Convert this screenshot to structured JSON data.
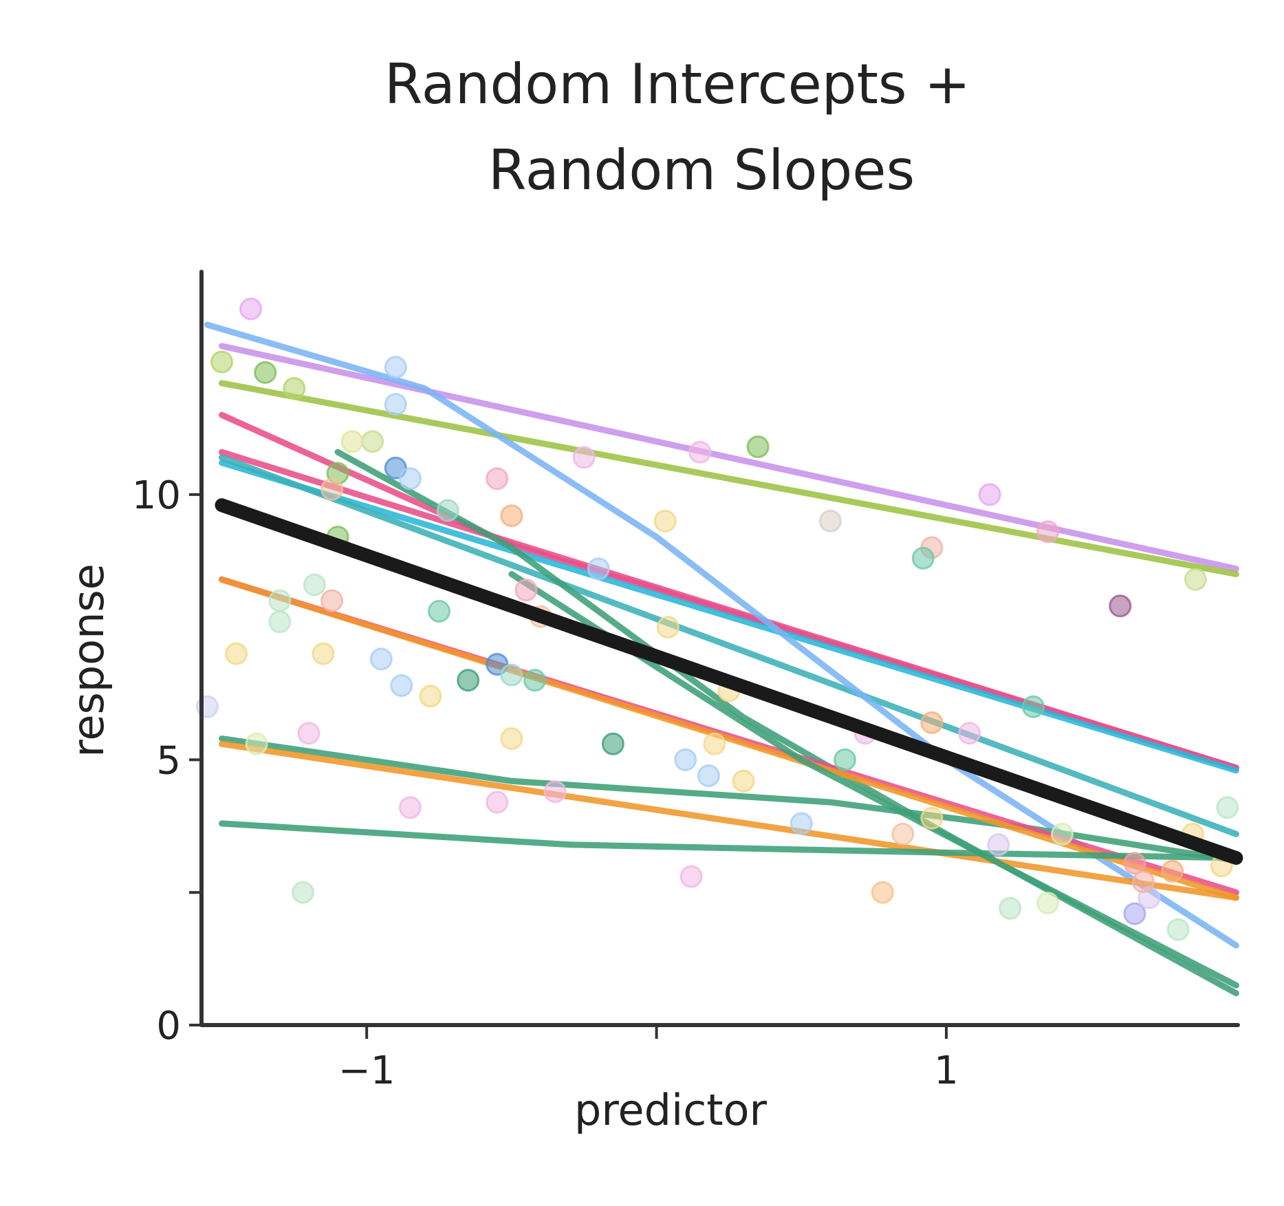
{
  "chart_data": {
    "type": "line",
    "title": "Random Intercepts + Random Slopes",
    "title_lines": [
      "Random Intercepts +",
      "Random Slopes"
    ],
    "xlabel": "predictor",
    "ylabel": "response",
    "xlim": [
      -1.57,
      2.03
    ],
    "ylim": [
      0,
      14.2
    ],
    "x_ticks": [
      {
        "value": -1,
        "label": "−1"
      },
      {
        "value": 0,
        "label": ""
      },
      {
        "value": 1,
        "label": "1"
      }
    ],
    "y_ticks": [
      {
        "value": 0,
        "label": "0"
      },
      {
        "value": 2.5,
        "label": ""
      },
      {
        "value": 5,
        "label": "5"
      },
      {
        "value": 10,
        "label": "10"
      }
    ],
    "grid": false,
    "legend": "none",
    "fixed_effect": {
      "name": "",
      "color": "#1a1a1a",
      "x": [
        -1.5,
        2.0
      ],
      "y": [
        9.8,
        3.15
      ]
    },
    "series": [
      {
        "color": "#c792ea",
        "x": [
          -1.5,
          2.0
        ],
        "y": [
          12.8,
          8.6
        ]
      },
      {
        "color": "#9dc243",
        "x": [
          -1.5,
          2.0
        ],
        "y": [
          12.1,
          8.5
        ]
      },
      {
        "color": "#e84f8a",
        "x": [
          -1.5,
          -0.5,
          2.0
        ],
        "y": [
          11.5,
          9.05,
          4.85
        ]
      },
      {
        "color": "#e84f8a",
        "x": [
          -1.5,
          2.0
        ],
        "y": [
          10.8,
          4.85
        ]
      },
      {
        "color": "#2bb6d6",
        "x": [
          -1.5,
          2.0
        ],
        "y": [
          10.6,
          4.8
        ]
      },
      {
        "color": "#3bb0b8",
        "x": [
          -1.5,
          2.0
        ],
        "y": [
          10.7,
          3.6
        ]
      },
      {
        "color": "#7ab4f5",
        "x": [
          -1.55,
          -0.8,
          0.0,
          1.0,
          2.0
        ],
        "y": [
          13.2,
          12.0,
          9.2,
          5.0,
          1.5
        ]
      },
      {
        "color": "#3d9f78",
        "x": [
          -1.1,
          -0.5,
          0.3,
          1.0,
          2.0
        ],
        "y": [
          10.8,
          9.0,
          5.8,
          3.6,
          0.6
        ]
      },
      {
        "color": "#3d9f78",
        "x": [
          -1.5,
          -0.5,
          0.6,
          1.3,
          2.0
        ],
        "y": [
          5.4,
          4.6,
          4.2,
          3.7,
          3.1
        ]
      },
      {
        "color": "#e84f8a",
        "x": [
          -1.5,
          2.0
        ],
        "y": [
          8.4,
          2.5
        ]
      },
      {
        "color": "#f0962a",
        "x": [
          -1.5,
          2.0
        ],
        "y": [
          8.4,
          2.4
        ]
      },
      {
        "color": "#f0962a",
        "x": [
          -1.5,
          2.0
        ],
        "y": [
          5.3,
          2.4
        ]
      },
      {
        "color": "#3d9f78",
        "x": [
          -1.5,
          -0.3,
          1.0,
          2.0
        ],
        "y": [
          3.8,
          3.4,
          3.25,
          3.15
        ]
      },
      {
        "color": "#3d9f78",
        "x": [
          -0.5,
          0.5,
          1.2,
          2.0
        ],
        "y": [
          8.5,
          5.0,
          3.0,
          0.75
        ]
      }
    ],
    "points": [
      {
        "x": -1.4,
        "y": 13.5,
        "color": "#e6a8f0"
      },
      {
        "x": -0.9,
        "y": 12.4,
        "color": "#a9cdf5"
      },
      {
        "x": -1.5,
        "y": 12.5,
        "color": "#b5d36a"
      },
      {
        "x": -1.35,
        "y": 12.3,
        "color": "#7fbf5a"
      },
      {
        "x": -1.25,
        "y": 12.0,
        "color": "#b5d36a"
      },
      {
        "x": -0.9,
        "y": 11.7,
        "color": "#a9cdf5"
      },
      {
        "x": -0.98,
        "y": 11.0,
        "color": "#c8dd90"
      },
      {
        "x": -1.05,
        "y": 11.0,
        "color": "#e0e59a"
      },
      {
        "x": -0.9,
        "y": 10.5,
        "color": "#4f8fd6"
      },
      {
        "x": -0.85,
        "y": 10.3,
        "color": "#a9cdf5"
      },
      {
        "x": -1.1,
        "y": 10.4,
        "color": "#7fbf5a"
      },
      {
        "x": -1.12,
        "y": 10.1,
        "color": "#f3c2a0"
      },
      {
        "x": -0.55,
        "y": 10.3,
        "color": "#f6a8bf"
      },
      {
        "x": -0.72,
        "y": 9.7,
        "color": "#9fd8c8"
      },
      {
        "x": -0.5,
        "y": 9.6,
        "color": "#f7b07a"
      },
      {
        "x": -0.25,
        "y": 10.7,
        "color": "#f0b8e4"
      },
      {
        "x": 0.15,
        "y": 10.8,
        "color": "#f0b8e4"
      },
      {
        "x": 0.35,
        "y": 10.9,
        "color": "#7fbf5a"
      },
      {
        "x": 0.03,
        "y": 9.5,
        "color": "#f4d88a"
      },
      {
        "x": -0.2,
        "y": 8.6,
        "color": "#a9cdf5"
      },
      {
        "x": 0.6,
        "y": 9.5,
        "color": "#d8d0c8"
      },
      {
        "x": 0.95,
        "y": 9.0,
        "color": "#f3b2a8"
      },
      {
        "x": 0.92,
        "y": 8.8,
        "color": "#6ec9a8"
      },
      {
        "x": 1.15,
        "y": 10.0,
        "color": "#e6a8f0"
      },
      {
        "x": 1.35,
        "y": 9.3,
        "color": "#f0a8c8"
      },
      {
        "x": 1.6,
        "y": 7.9,
        "color": "#9b5a8c"
      },
      {
        "x": 1.86,
        "y": 8.4,
        "color": "#c8dd90"
      },
      {
        "x": -1.1,
        "y": 9.2,
        "color": "#7fbf5a"
      },
      {
        "x": -1.18,
        "y": 8.3,
        "color": "#bce6c8"
      },
      {
        "x": -1.12,
        "y": 8.0,
        "color": "#f3b2a8"
      },
      {
        "x": -1.3,
        "y": 8.0,
        "color": "#bce6c8"
      },
      {
        "x": -0.75,
        "y": 7.8,
        "color": "#6ec9a8"
      },
      {
        "x": -0.45,
        "y": 8.2,
        "color": "#f6a8bf"
      },
      {
        "x": -0.4,
        "y": 7.7,
        "color": "#f3c2a0"
      },
      {
        "x": 0.04,
        "y": 7.5,
        "color": "#f4d88a"
      },
      {
        "x": -1.45,
        "y": 7.0,
        "color": "#f4d88a"
      },
      {
        "x": -1.15,
        "y": 7.0,
        "color": "#f4d88a"
      },
      {
        "x": -1.3,
        "y": 7.6,
        "color": "#bce6c8"
      },
      {
        "x": -0.95,
        "y": 6.9,
        "color": "#a9cdf5"
      },
      {
        "x": -0.88,
        "y": 6.4,
        "color": "#a9cdf5"
      },
      {
        "x": -0.78,
        "y": 6.2,
        "color": "#f4d88a"
      },
      {
        "x": -0.55,
        "y": 6.8,
        "color": "#4f8fd6"
      },
      {
        "x": -0.65,
        "y": 6.5,
        "color": "#3d9f78"
      },
      {
        "x": -0.5,
        "y": 6.6,
        "color": "#9fd8c8"
      },
      {
        "x": -0.42,
        "y": 6.5,
        "color": "#6ec9a8"
      },
      {
        "x": 0.25,
        "y": 6.3,
        "color": "#f4d88a"
      },
      {
        "x": -1.55,
        "y": 6.0,
        "color": "#cfd0f5"
      },
      {
        "x": -1.2,
        "y": 5.5,
        "color": "#f0b8e4"
      },
      {
        "x": -1.38,
        "y": 5.3,
        "color": "#d8ecb8"
      },
      {
        "x": -0.5,
        "y": 5.4,
        "color": "#f4d88a"
      },
      {
        "x": -0.15,
        "y": 5.3,
        "color": "#3d9f78"
      },
      {
        "x": 0.1,
        "y": 5.0,
        "color": "#a9cdf5"
      },
      {
        "x": 0.2,
        "y": 5.3,
        "color": "#f4d88a"
      },
      {
        "x": 0.18,
        "y": 4.7,
        "color": "#a9cdf5"
      },
      {
        "x": 0.3,
        "y": 4.6,
        "color": "#f4d88a"
      },
      {
        "x": 0.65,
        "y": 5.0,
        "color": "#6ec9a8"
      },
      {
        "x": 0.72,
        "y": 5.5,
        "color": "#f0b8e4"
      },
      {
        "x": 0.95,
        "y": 5.7,
        "color": "#f7b07a"
      },
      {
        "x": 1.08,
        "y": 5.5,
        "color": "#f0b8e4"
      },
      {
        "x": 1.3,
        "y": 6.0,
        "color": "#6ec9a8"
      },
      {
        "x": -0.85,
        "y": 4.1,
        "color": "#f0b8e4"
      },
      {
        "x": -0.55,
        "y": 4.2,
        "color": "#f0b8e4"
      },
      {
        "x": -0.35,
        "y": 4.4,
        "color": "#f0b8e4"
      },
      {
        "x": 0.5,
        "y": 3.8,
        "color": "#a9cdf5"
      },
      {
        "x": 0.85,
        "y": 3.6,
        "color": "#f3c2a0"
      },
      {
        "x": 0.95,
        "y": 3.9,
        "color": "#f4d88a"
      },
      {
        "x": 1.18,
        "y": 3.4,
        "color": "#d8c8f0"
      },
      {
        "x": 1.4,
        "y": 3.6,
        "color": "#d8ecb8"
      },
      {
        "x": 1.85,
        "y": 3.6,
        "color": "#f4d88a"
      },
      {
        "x": 1.97,
        "y": 4.1,
        "color": "#bce6c8"
      },
      {
        "x": 0.12,
        "y": 2.8,
        "color": "#f0b8e4"
      },
      {
        "x": -1.22,
        "y": 2.5,
        "color": "#bce6c8"
      },
      {
        "x": 0.78,
        "y": 2.5,
        "color": "#f7c08a"
      },
      {
        "x": 1.35,
        "y": 2.3,
        "color": "#d8ecb8"
      },
      {
        "x": 1.22,
        "y": 2.2,
        "color": "#bce6c8"
      },
      {
        "x": 1.65,
        "y": 2.1,
        "color": "#a9a8f0"
      },
      {
        "x": 1.7,
        "y": 2.4,
        "color": "#d8c8f0"
      },
      {
        "x": 1.65,
        "y": 3.05,
        "color": "#f7a0a0"
      },
      {
        "x": 1.78,
        "y": 2.9,
        "color": "#f7b07a"
      },
      {
        "x": 1.8,
        "y": 1.8,
        "color": "#bce6c8"
      },
      {
        "x": 1.95,
        "y": 3.0,
        "color": "#f4d88a"
      },
      {
        "x": 1.68,
        "y": 2.7,
        "color": "#f3b2a8"
      }
    ]
  }
}
